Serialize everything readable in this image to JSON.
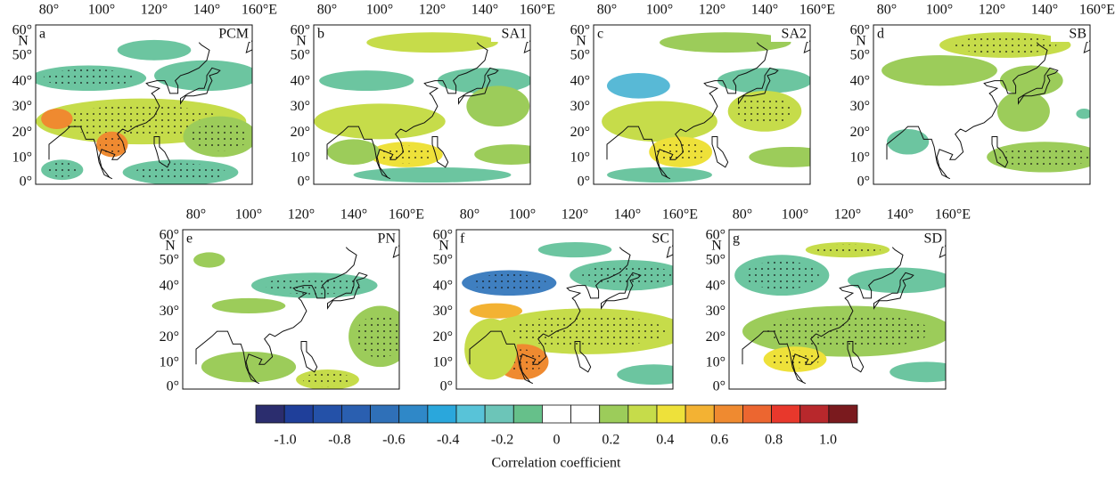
{
  "panels": [
    {
      "letter": "a",
      "name": "PCM",
      "lon_labels": [
        "80°",
        "100°",
        "120°",
        "140°",
        "160°E"
      ],
      "lat_labels": [
        "60°",
        "N",
        "50°",
        "40°",
        "30°",
        "20°",
        "10°",
        "0°"
      ]
    },
    {
      "letter": "b",
      "name": "SA1",
      "lon_labels": [
        "80°",
        "100°",
        "120°",
        "140°",
        "160°E"
      ],
      "lat_labels": [
        "60°",
        "N",
        "50°",
        "40°",
        "30°",
        "20°",
        "10°",
        "0°"
      ]
    },
    {
      "letter": "c",
      "name": "SA2",
      "lon_labels": [
        "80°",
        "100°",
        "120°",
        "140°",
        "160°E"
      ],
      "lat_labels": [
        "60°",
        "N",
        "50°",
        "40°",
        "30°",
        "20°",
        "10°",
        "0°"
      ]
    },
    {
      "letter": "d",
      "name": "SB",
      "lon_labels": [
        "80°",
        "100°",
        "120°",
        "140°",
        "160°E"
      ],
      "lat_labels": [
        "60°",
        "N",
        "50°",
        "40°",
        "30°",
        "20°",
        "10°",
        "0°"
      ]
    },
    {
      "letter": "e",
      "name": "PN",
      "lon_labels": [
        "80°",
        "100°",
        "120°",
        "140°",
        "160°E"
      ],
      "lat_labels": [
        "60°",
        "N",
        "50°",
        "40°",
        "30°",
        "20°",
        "10°",
        "0°"
      ]
    },
    {
      "letter": "f",
      "name": "SC",
      "lon_labels": [
        "80°",
        "100°",
        "120°",
        "140°",
        "160°E"
      ],
      "lat_labels": [
        "60°",
        "N",
        "50°",
        "40°",
        "30°",
        "20°",
        "10°",
        "0°"
      ]
    },
    {
      "letter": "g",
      "name": "SD",
      "lon_labels": [
        "80°",
        "100°",
        "120°",
        "140°",
        "160°E"
      ],
      "lat_labels": [
        "60°",
        "N",
        "50°",
        "40°",
        "30°",
        "20°",
        "10°",
        "0°"
      ]
    }
  ],
  "colorbar": {
    "ticks": [
      "-1.0",
      "-0.8",
      "-0.6",
      "-0.4",
      "-0.2",
      "0",
      "0.2",
      "0.4",
      "0.6",
      "0.8",
      "1.0"
    ],
    "label": "Correlation coefficient"
  }
}
